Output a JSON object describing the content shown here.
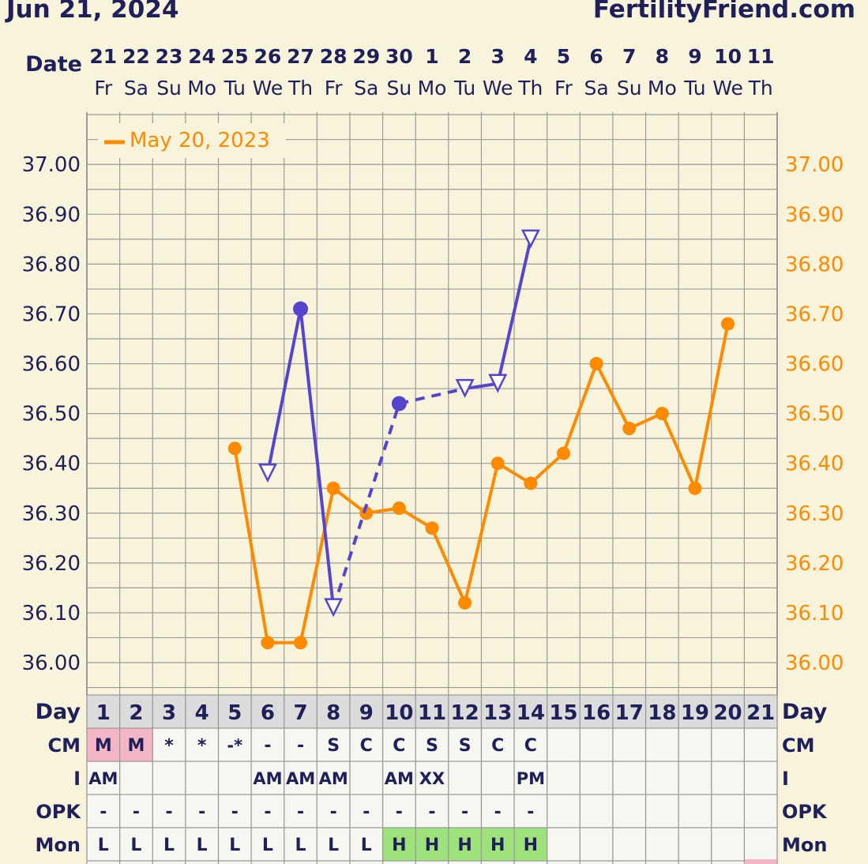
{
  "header": {
    "date": "Jun 21, 2024",
    "brand": "FertilityFriend.com"
  },
  "colors": {
    "current": "#5544cc",
    "overlay": "#ff8a00",
    "navy": "#1f1f5a",
    "grid": "#9a9a9a",
    "pink": "#f4b6c6",
    "green": "#9de27a"
  },
  "chart_data": {
    "type": "line",
    "x_label": "Date",
    "dates": [
      "21",
      "22",
      "23",
      "24",
      "25",
      "26",
      "27",
      "28",
      "29",
      "30",
      "1",
      "2",
      "3",
      "4",
      "5",
      "6",
      "7",
      "8",
      "9",
      "10",
      "11"
    ],
    "weekdays": [
      "Fr",
      "Sa",
      "Su",
      "Mo",
      "Tu",
      "We",
      "Th",
      "Fr",
      "Sa",
      "Su",
      "Mo",
      "Tu",
      "We",
      "Th",
      "Fr",
      "Sa",
      "Su",
      "Mo",
      "Tu",
      "We",
      "Th"
    ],
    "cycle_days": [
      "1",
      "2",
      "3",
      "4",
      "5",
      "6",
      "7",
      "8",
      "9",
      "10",
      "11",
      "12",
      "13",
      "14",
      "15",
      "16",
      "17",
      "18",
      "19",
      "20",
      "21"
    ],
    "ylim": [
      35.935,
      37.105
    ],
    "y_ticks": [
      "37.00",
      "36.90",
      "36.80",
      "36.70",
      "36.60",
      "36.50",
      "36.40",
      "36.30",
      "36.20",
      "36.10",
      "36.00"
    ],
    "legend": [
      "May 20, 2023"
    ],
    "series": [
      {
        "points": [
          {
            "day": 6,
            "temp": 36.38,
            "marker": "open-triangle"
          },
          {
            "day": 7,
            "temp": 36.71,
            "marker": "filled-circle"
          },
          {
            "day": 8,
            "temp": 36.11,
            "marker": "open-triangle"
          },
          {
            "day": 10,
            "temp": 36.52,
            "marker": "filled-circle"
          },
          {
            "day": 12,
            "temp": 36.55,
            "marker": "open-triangle"
          },
          {
            "day": 13,
            "temp": 36.56,
            "marker": "open-triangle"
          },
          {
            "day": 14,
            "temp": 36.85,
            "marker": "open-triangle"
          }
        ],
        "segments": [
          {
            "from": 6,
            "to": 7,
            "style": "solid"
          },
          {
            "from": 7,
            "to": 8,
            "style": "solid"
          },
          {
            "from": 8,
            "to": 10,
            "style": "dashed"
          },
          {
            "from": 10,
            "to": 12,
            "style": "dashed"
          },
          {
            "from": 12,
            "to": 13,
            "style": "solid"
          },
          {
            "from": 13,
            "to": 14,
            "style": "solid"
          }
        ]
      },
      {
        "name": "May 20, 2023",
        "points": [
          {
            "day": 5,
            "temp": 36.43
          },
          {
            "day": 6,
            "temp": 36.04
          },
          {
            "day": 7,
            "temp": 36.04
          },
          {
            "day": 8,
            "temp": 36.35
          },
          {
            "day": 9,
            "temp": 36.3
          },
          {
            "day": 10,
            "temp": 36.31
          },
          {
            "day": 11,
            "temp": 36.27
          },
          {
            "day": 12,
            "temp": 36.12
          },
          {
            "day": 13,
            "temp": 36.4
          },
          {
            "day": 14,
            "temp": 36.36
          },
          {
            "day": 15,
            "temp": 36.42
          },
          {
            "day": 16,
            "temp": 36.6
          },
          {
            "day": 17,
            "temp": 36.47
          },
          {
            "day": 18,
            "temp": 36.5
          },
          {
            "day": 19,
            "temp": 36.35
          },
          {
            "day": 20,
            "temp": 36.68
          }
        ]
      }
    ],
    "rows": [
      {
        "label": "Day"
      },
      {
        "label": "CM",
        "values": [
          "M",
          "M",
          "*",
          "*",
          "-*",
          "-",
          "-",
          "S",
          "C",
          "C",
          "S",
          "S",
          "C",
          "C",
          "",
          "",
          "",
          "",
          "",
          "",
          ""
        ]
      },
      {
        "label": "I",
        "values": [
          "AM",
          "",
          "",
          "",
          "",
          "AM",
          "AM",
          "AM",
          "",
          "AM",
          "XX",
          "",
          "",
          "PM",
          "",
          "",
          "",
          "",
          "",
          "",
          ""
        ]
      },
      {
        "label": "OPK",
        "values": [
          "-",
          "-",
          "-",
          "-",
          "-",
          "-",
          "-",
          "-",
          "-",
          "-",
          "-",
          "-",
          "-",
          "-",
          "",
          "",
          "",
          "",
          "",
          "",
          ""
        ]
      },
      {
        "label": "Mon",
        "values": [
          "L",
          "L",
          "L",
          "L",
          "L",
          "L",
          "L",
          "L",
          "L",
          "H",
          "H",
          "H",
          "H",
          "H",
          "",
          "",
          "",
          "",
          "",
          "",
          ""
        ]
      }
    ]
  }
}
